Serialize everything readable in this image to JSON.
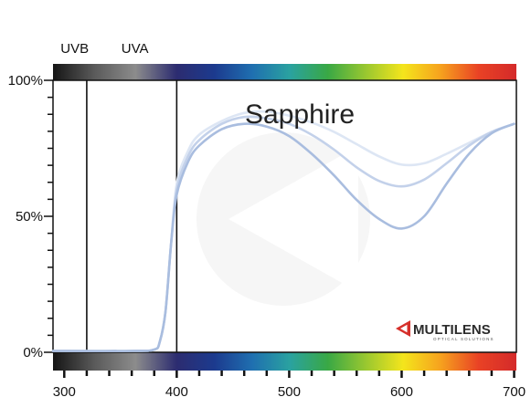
{
  "chart_data": {
    "type": "line",
    "title": "Sapphire",
    "xlabel": "",
    "ylabel": "",
    "xlim": [
      290,
      702
    ],
    "ylim": [
      0,
      100
    ],
    "x_ticks": [
      300,
      400,
      500,
      600,
      700
    ],
    "x_tick_labels": [
      "300",
      "400",
      "500",
      "600",
      "700"
    ],
    "y_ticks": [
      0,
      50,
      100
    ],
    "y_tick_labels": [
      "0%",
      "50%",
      "100%"
    ],
    "band_lines": [
      320,
      400
    ],
    "band_labels": [
      {
        "text": "UVB",
        "x": 300
      },
      {
        "text": "UVA",
        "x": 354
      }
    ],
    "grid": false,
    "series": [
      {
        "color": "#dde6f4",
        "x": [
          290,
          360,
          380,
          385,
          390,
          395,
          400,
          410,
          420,
          440,
          460,
          480,
          500,
          520,
          540,
          560,
          580,
          600,
          620,
          640,
          660,
          680,
          700
        ],
        "y": [
          0.5,
          0.5,
          1,
          4,
          15,
          40,
          62,
          74,
          80,
          85,
          88,
          88.5,
          87,
          84.5,
          81,
          76.5,
          72,
          69,
          69.5,
          73,
          77,
          81,
          84
        ]
      },
      {
        "color": "#c3d1ea",
        "x": [
          290,
          360,
          380,
          385,
          390,
          395,
          400,
          410,
          420,
          440,
          460,
          480,
          500,
          520,
          540,
          560,
          580,
          600,
          620,
          640,
          660,
          680,
          700
        ],
        "y": [
          0.5,
          0.5,
          1,
          4,
          15,
          40,
          60,
          72,
          78,
          84,
          86.5,
          86,
          84,
          80,
          74.5,
          68,
          63,
          61,
          63.5,
          69.5,
          76,
          81,
          84
        ]
      },
      {
        "color": "#a9bddf",
        "x": [
          290,
          360,
          380,
          385,
          390,
          395,
          400,
          410,
          420,
          440,
          460,
          480,
          500,
          520,
          540,
          560,
          580,
          600,
          620,
          640,
          660,
          680,
          700
        ],
        "y": [
          0.5,
          0.5,
          1,
          4,
          15,
          40,
          58,
          70,
          76,
          82,
          84,
          83,
          79.5,
          73,
          65,
          56,
          49,
          45.5,
          50,
          62,
          73,
          80.5,
          84
        ]
      }
    ]
  },
  "logo": {
    "name": "MULTILENS",
    "tagline": "OPTICAL SOLUTIONS",
    "color": "#d6302b"
  },
  "colors": {
    "uv_bar": [
      "#151515",
      "#5a5a5a",
      "#8c8c8c",
      "#2c2c70"
    ],
    "visible_bar": [
      "#2c2c70",
      "#1c3a8e",
      "#1f6fb0",
      "#2aa2a0",
      "#39a845",
      "#98c730",
      "#f4e51c",
      "#f6a11e",
      "#e94225",
      "#d42a2a"
    ]
  }
}
